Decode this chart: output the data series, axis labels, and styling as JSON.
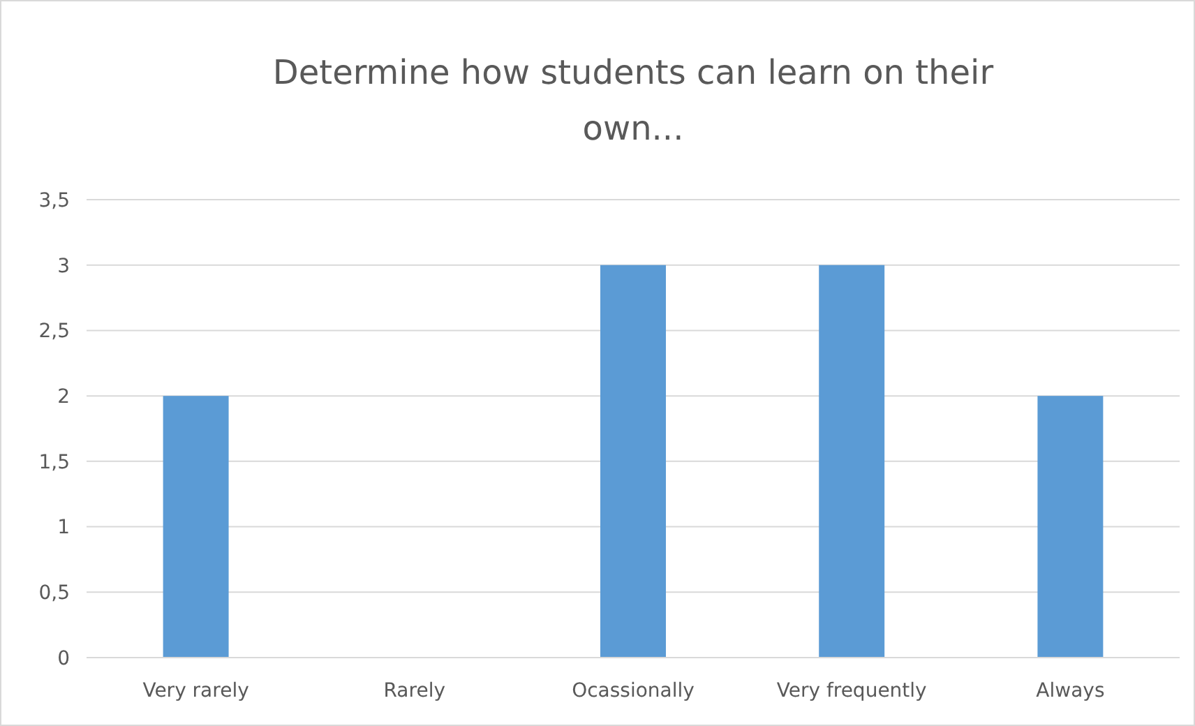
{
  "chart_data": {
    "type": "bar",
    "title": "Determine how students can learn on their own...",
    "categories": [
      "Very rarely",
      "Rarely",
      "Ocassionally",
      "Very frequently",
      "Always"
    ],
    "values": [
      2,
      0,
      3,
      3,
      2
    ],
    "color": "#5b9bd5",
    "ylim": [
      0,
      3.5
    ],
    "yticks": [
      0,
      {
        "value": 0.5,
        "label": "0,5"
      },
      1,
      {
        "value": 1.5,
        "label": "1,5"
      },
      2,
      {
        "value": 2.5,
        "label": "2,5"
      },
      3,
      {
        "value": 3.5,
        "label": "3,5"
      }
    ],
    "grid": "y"
  }
}
